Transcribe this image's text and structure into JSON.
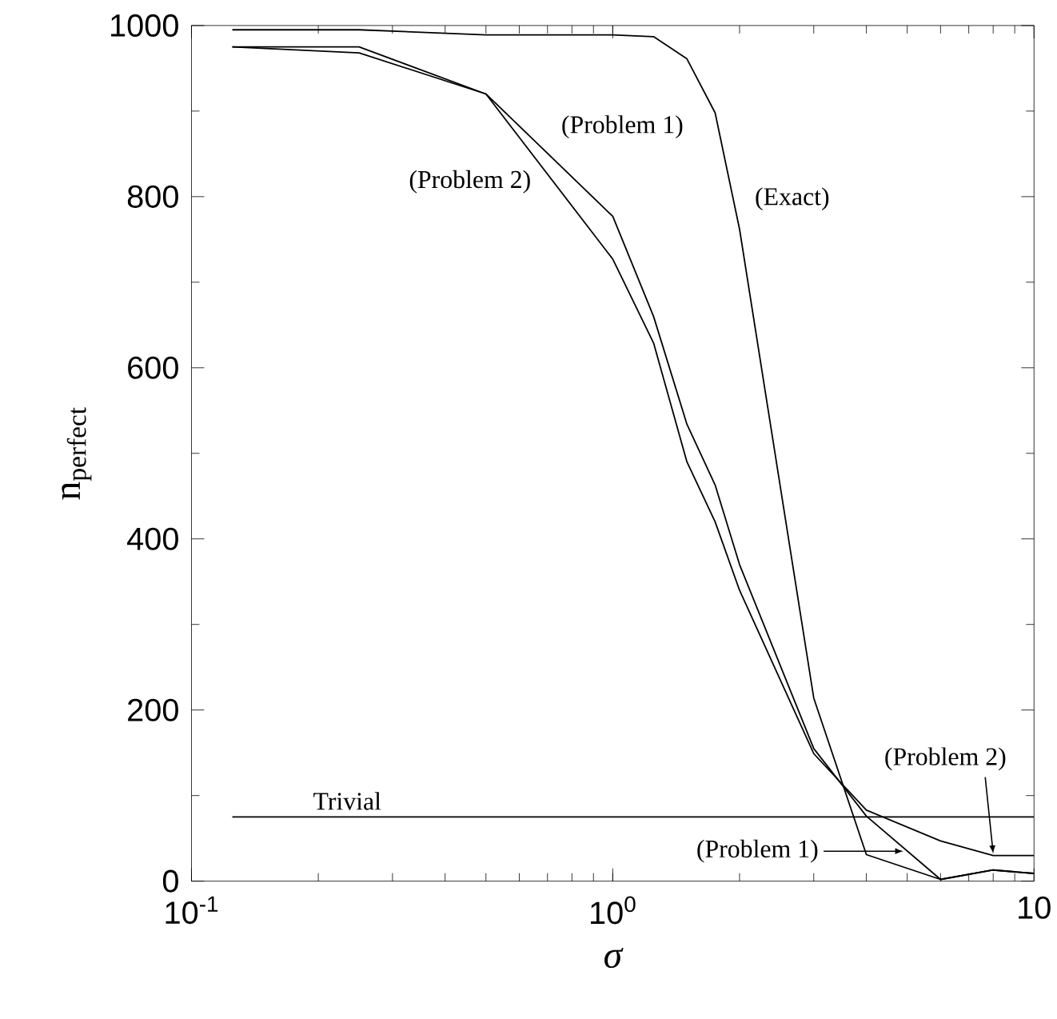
{
  "chart_data": {
    "type": "line",
    "xlabel": "σ",
    "ylabel": "n$_{perfect}$",
    "log": "x",
    "xlim": [
      0.1,
      10
    ],
    "ylim": [
      0,
      1000
    ],
    "xticks": [
      {
        "value": 0.1,
        "label": "10$^{-1}$"
      },
      {
        "value": 1,
        "label": "10$^{0}$"
      },
      {
        "value": 10,
        "label": "10"
      }
    ],
    "yticks": [
      0,
      200,
      400,
      600,
      800,
      1000
    ],
    "marker": "none",
    "line_style": "solid",
    "series": [
      {
        "name": "(Problem 1)",
        "color": "#000000",
        "x": [
          0.125,
          0.25,
          0.5,
          1,
          1.25,
          1.5,
          1.75,
          2,
          3,
          4,
          6,
          8,
          10
        ],
        "values": [
          975,
          975,
          920,
          777,
          660,
          534,
          463,
          370,
          155,
          76,
          2,
          13,
          9
        ]
      },
      {
        "name": "(Problem 2)",
        "color": "#000000",
        "x": [
          0.125,
          0.25,
          0.5,
          1,
          1.25,
          1.5,
          1.75,
          2,
          3,
          4,
          6,
          8,
          10
        ],
        "values": [
          975,
          968,
          920,
          727,
          629,
          490,
          420,
          340,
          149,
          83,
          47,
          30,
          30
        ]
      },
      {
        "name": "(Exact)",
        "color": "#000000",
        "x": [
          0.125,
          0.25,
          0.5,
          1,
          1.25,
          1.5,
          1.75,
          2,
          3,
          4,
          6,
          8,
          10
        ],
        "values": [
          995,
          995,
          989,
          989,
          987,
          961,
          898,
          762,
          214,
          31,
          2,
          13,
          9
        ]
      },
      {
        "name": "Trivial",
        "color": "#000000",
        "x": [
          0.125,
          10
        ],
        "values": [
          75,
          75
        ]
      }
    ],
    "annotations": [
      "(Problem 1)",
      {
        "text": "(Problem 2)",
        "x": 8,
        "y": 32
      }
    ]
  }
}
